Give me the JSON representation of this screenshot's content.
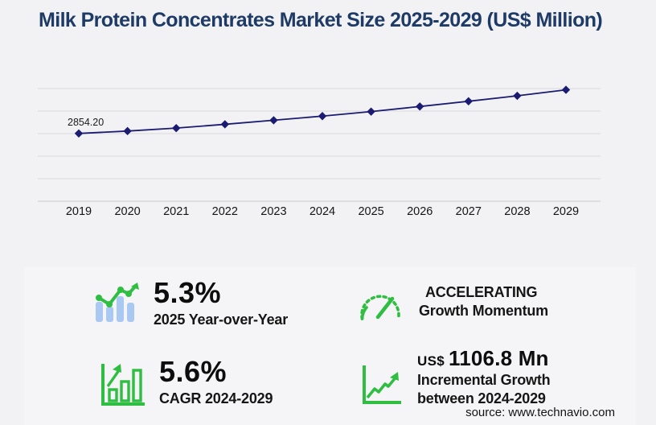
{
  "title": "Milk Protein Concentrates Market Size 2025-2029 (US$ Million)",
  "source": "source: www.technavio.com",
  "colors": {
    "title_navy": "#1e3a66",
    "line_navy": "#1b1b72",
    "accent_green": "#2fbe41",
    "bar_blue": "#a9c9f2",
    "gridline": "#d9d9dc",
    "panel_bg": "#f5f5f7",
    "page_bg": "#f2f2f4"
  },
  "chart_data": {
    "type": "line",
    "title": "Milk Protein Concentrates Market Size 2025-2029 (US$ Million)",
    "x": [
      2019,
      2020,
      2021,
      2022,
      2023,
      2024,
      2025,
      2026,
      2027,
      2028,
      2029
    ],
    "series": [
      {
        "name": "Market size (US$ Million)",
        "values": [
          2854.2,
          2955,
          3080,
          3240,
          3410,
          3585,
          3775,
          3990,
          4210,
          4440,
          4692
        ]
      }
    ],
    "point_labels": [
      {
        "x": 2019,
        "text": "2854.20"
      }
    ],
    "xlabel": "",
    "ylabel": "",
    "ylim": [
      0,
      5254
    ],
    "grid": true,
    "gridline_count": 6,
    "legend_position": "none",
    "marker": "diamond"
  },
  "stats": {
    "yoy": {
      "value": "5.3%",
      "label": "2025 Year-over-Year"
    },
    "momentum": {
      "line1": "ACCELERATING",
      "line2": "Growth Momentum"
    },
    "cagr": {
      "value": "5.6%",
      "label": "CAGR 2024-2029"
    },
    "incremental": {
      "currency": "US$",
      "value": "1106.8 Mn",
      "line2": "Incremental Growth",
      "line3": "between 2024-2029"
    }
  }
}
